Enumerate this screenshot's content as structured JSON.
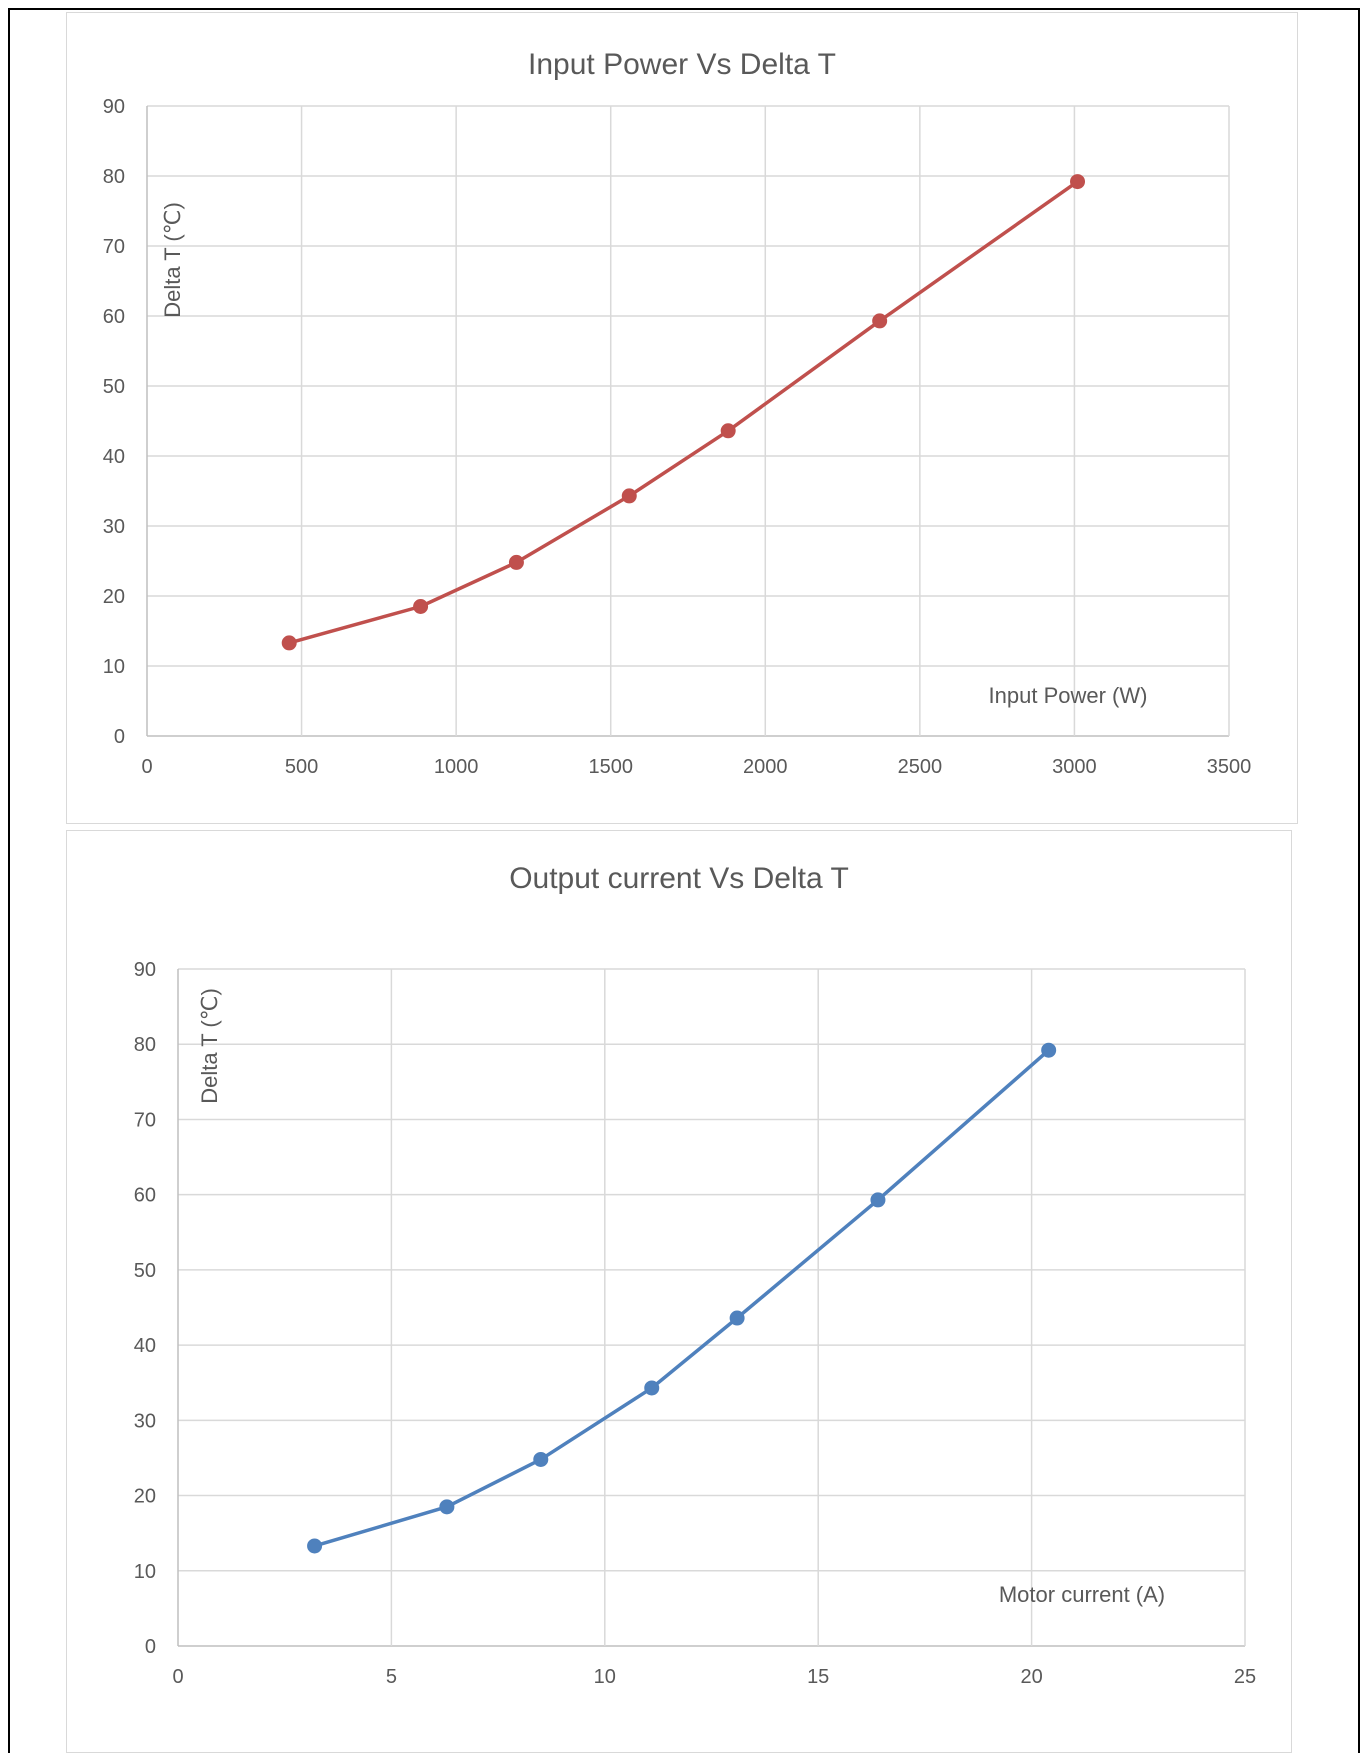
{
  "chart_data": [
    {
      "type": "line",
      "title": "Input Power Vs Delta T",
      "xlabel": "Input Power (W)",
      "ylabel": "Delta T (℃)",
      "xlim": [
        0,
        3500
      ],
      "ylim": [
        0,
        90
      ],
      "xticks": [
        0,
        500,
        1000,
        1500,
        2000,
        2500,
        3000,
        3500
      ],
      "yticks": [
        0,
        10,
        20,
        30,
        40,
        50,
        60,
        70,
        80,
        90
      ],
      "grid": true,
      "series": [
        {
          "color": "#c0504d",
          "x": [
            460,
            885,
            1195,
            1560,
            1880,
            2370,
            3010
          ],
          "y": [
            13.3,
            18.5,
            24.8,
            34.3,
            43.6,
            59.3,
            79.2
          ]
        }
      ]
    },
    {
      "type": "line",
      "title": "Output current Vs Delta T",
      "xlabel": "Motor current (A)",
      "ylabel": "Delta T (℃)",
      "xlim": [
        0,
        25
      ],
      "ylim": [
        0,
        90
      ],
      "xticks": [
        0,
        5,
        10,
        15,
        20,
        25
      ],
      "yticks": [
        0,
        10,
        20,
        30,
        40,
        50,
        60,
        70,
        80,
        90
      ],
      "grid": true,
      "series": [
        {
          "color": "#4f81bd",
          "x": [
            3.2,
            6.3,
            8.5,
            11.1,
            13.1,
            16.4,
            20.4
          ],
          "y": [
            13.3,
            18.5,
            24.8,
            34.3,
            43.6,
            59.3,
            79.2
          ]
        }
      ]
    }
  ]
}
